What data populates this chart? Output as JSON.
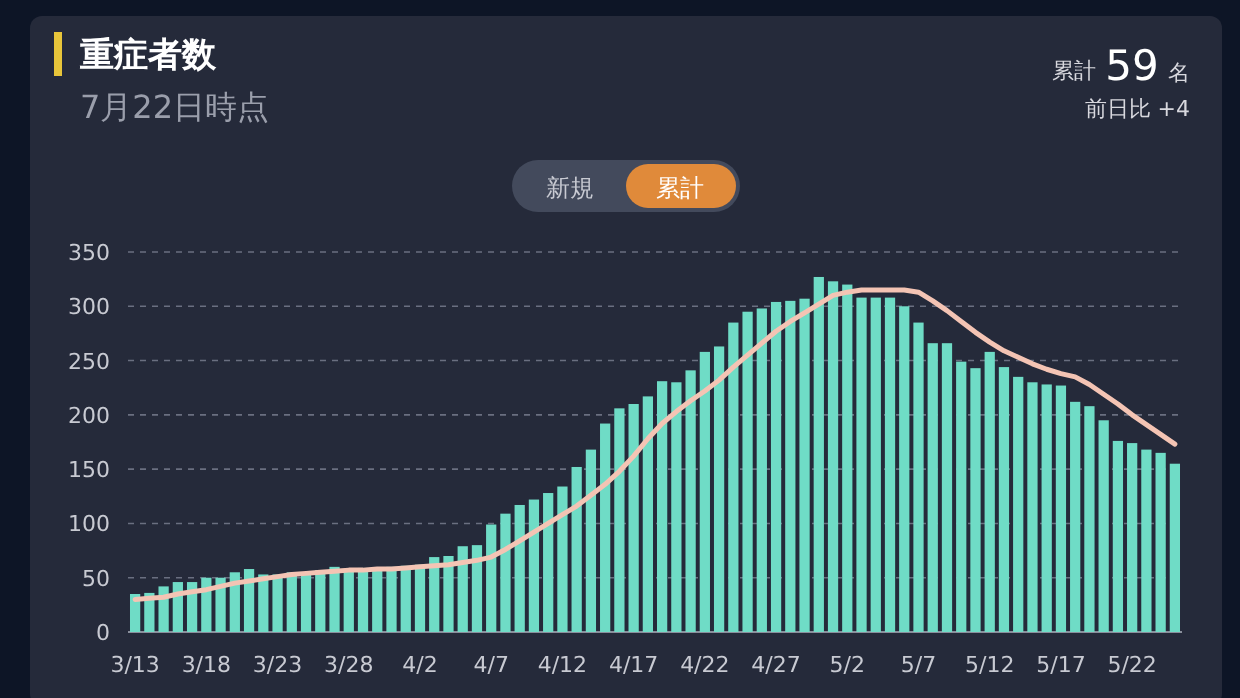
{
  "chart_data": {
    "type": "bar",
    "title": "重症者数",
    "subtitle": "7月22日時点",
    "annotations": [
      "累計",
      "59",
      "名",
      "前日比 +4",
      "新規",
      "累計"
    ],
    "categories": [
      "3/13",
      null,
      null,
      null,
      null,
      "3/18",
      null,
      null,
      null,
      null,
      "3/23",
      null,
      null,
      null,
      null,
      "3/28",
      null,
      null,
      null,
      null,
      "4/2",
      null,
      null,
      null,
      null,
      "4/7",
      null,
      null,
      null,
      null,
      "4/12",
      null,
      null,
      null,
      null,
      "4/17",
      null,
      null,
      null,
      null,
      "4/22",
      null,
      null,
      null,
      null,
      "4/27",
      null,
      null,
      null,
      null,
      "5/2",
      null,
      null,
      null,
      null,
      "5/7",
      null,
      null,
      null,
      null,
      "5/12",
      null,
      null,
      null,
      null,
      "5/17",
      null,
      null,
      null,
      null,
      "5/22",
      null,
      null,
      null
    ],
    "series": [
      {
        "color": "#6fdcc6",
        "values": [
          35,
          36,
          42,
          46,
          46,
          50,
          50,
          55,
          58,
          53,
          53,
          55,
          54,
          57,
          60,
          58,
          59,
          59,
          60,
          61,
          62,
          69,
          70,
          79,
          80,
          99,
          109,
          117,
          122,
          128,
          134,
          152,
          168,
          192,
          206,
          210,
          217,
          231,
          230,
          241,
          258,
          263,
          285,
          295,
          298,
          304,
          305,
          307,
          327,
          323,
          320,
          308,
          308,
          308,
          300,
          285,
          266,
          266,
          249,
          243,
          258,
          244,
          235,
          230,
          228,
          227,
          212,
          208,
          195,
          176,
          174,
          168,
          165,
          155
        ]
      },
      {
        "type": "line",
        "color": "#f4c4b4",
        "values": [
          30,
          31,
          32,
          35,
          37,
          39,
          42,
          45,
          47,
          49,
          51,
          53,
          54,
          55,
          56,
          57,
          57,
          58,
          58,
          59,
          60,
          61,
          62,
          64,
          66,
          69,
          76,
          84,
          92,
          100,
          108,
          116,
          126,
          136,
          148,
          162,
          178,
          192,
          203,
          213,
          222,
          232,
          244,
          255,
          266,
          277,
          286,
          294,
          302,
          310,
          313,
          315,
          315,
          315,
          315,
          313,
          305,
          296,
          286,
          276,
          267,
          259,
          253,
          247,
          242,
          238,
          235,
          228,
          219,
          210,
          200,
          191,
          182,
          173
        ]
      }
    ],
    "ylim": [
      0,
      350
    ],
    "yticks": [
      0,
      50,
      100,
      150,
      200,
      250,
      300,
      350
    ],
    "grid": "y"
  }
}
